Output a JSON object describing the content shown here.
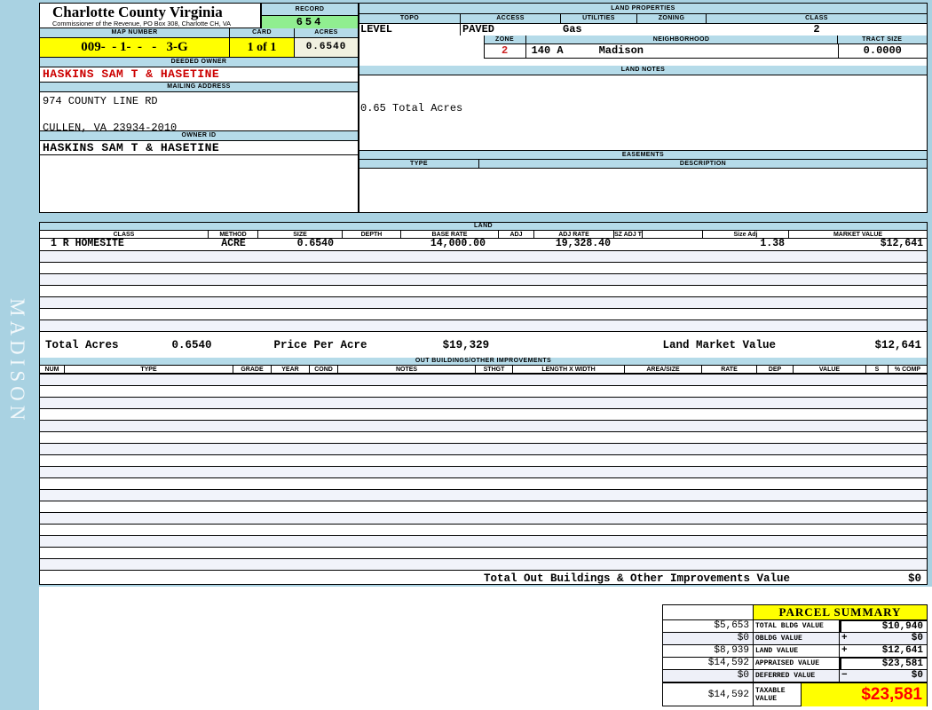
{
  "watermark": "MADISON",
  "header": {
    "county_title": "Charlotte County Virginia",
    "county_subtitle": "Commissioner of the Revenue, PO Box 308, Charlotte CH, VA",
    "record_label": "RECORD",
    "record_value": "654",
    "map_number_label": "MAP NUMBER",
    "map_number_value": "009-  - 1-  -   -   3-G",
    "card_label": "CARD",
    "card_value": "1 of 1",
    "acres_label": "ACRES",
    "acres_value": "0.6540"
  },
  "owner": {
    "deeded_owner_label": "DEEDED OWNER",
    "deeded_owner": "HASKINS SAM T & HASETINE",
    "mailing_address_label": "MAILING ADDRESS",
    "address_line1": "974 COUNTY LINE RD",
    "address_line2": "CULLEN, VA 23934-2010",
    "owner_id_label": "OWNER ID",
    "owner_id": "HASKINS SAM T & HASETINE"
  },
  "land_properties": {
    "title": "LAND PROPERTIES",
    "topo_label": "TOPO",
    "topo_value": "LEVEL",
    "access_label": "ACCESS",
    "access_value": "PAVED",
    "utilities_label": "UTILITIES",
    "utilities_value": "Gas",
    "zoning_label": "ZONING",
    "zoning_value": "",
    "class_label": "CLASS",
    "class_value": "2",
    "zone_label": "ZONE",
    "zone_value": "2",
    "neighborhood_label": "NEIGHBORHOOD",
    "neighborhood_code": "140 A",
    "neighborhood_name": "Madison",
    "tract_size_label": "TRACT SIZE",
    "tract_size_value": "0.0000"
  },
  "land_notes": {
    "title": "LAND NOTES",
    "note": "0.65 Total Acres"
  },
  "easements": {
    "title": "EASEMENTS",
    "type_label": "TYPE",
    "description_label": "DESCRIPTION"
  },
  "land_table": {
    "title": "LAND",
    "columns": [
      "CLASS",
      "METHOD",
      "SIZE",
      "DEPTH",
      "BASE RATE",
      "ADJ",
      "ADJ RATE",
      "SZ ADJ TBL",
      "",
      "Size Adj",
      "MARKET VALUE"
    ],
    "rows": [
      [
        "1 R HOMESITE",
        "ACRE",
        "0.6540",
        "",
        "14,000.00",
        "",
        "19,328.40",
        "",
        "",
        "1.38",
        "$12,641"
      ]
    ],
    "empty_row_count": 7,
    "totals": {
      "total_acres_label": "Total Acres",
      "total_acres": "0.6540",
      "price_per_acre_label": "Price Per Acre",
      "price_per_acre": "$19,329",
      "land_market_value_label": "Land Market Value",
      "land_market_value": "$12,641"
    }
  },
  "out_buildings": {
    "title": "OUT BUILDINGS/OTHER IMPROVEMENTS",
    "columns": [
      "NUM",
      "TYPE",
      "GRADE",
      "YEAR",
      "COND",
      "NOTES",
      "STHGT",
      "LENGTH X WIDTH",
      "AREA/SIZE",
      "RATE",
      "DEP",
      "VALUE",
      "S",
      "% COMP"
    ],
    "empty_row_count": 17,
    "total_label": "Total Out Buildings & Other Improvements Value",
    "total_value": "$0"
  },
  "parcel_summary": {
    "title": "PARCEL SUMMARY",
    "rows": [
      {
        "prior": "$5,653",
        "label": "TOTAL BLDG VALUE",
        "op": "",
        "value": "$10,940"
      },
      {
        "prior": "$0",
        "label": "OBLDG VALUE",
        "op": "+",
        "value": "$0"
      },
      {
        "prior": "$8,939",
        "label": "LAND VALUE",
        "op": "+",
        "value": "$12,641"
      },
      {
        "prior": "$14,592",
        "label": "APPRAISED VALUE",
        "op": "",
        "value": "$23,581"
      },
      {
        "prior": "$0",
        "label": "DEFERRED VALUE",
        "op": "−",
        "value": "$0"
      }
    ],
    "taxable": {
      "prior": "$14,592",
      "label": "TAXABLE VALUE",
      "value": "$23,581"
    }
  },
  "colors": {
    "page_background": "#a9d2e2",
    "section_bar": "#b5dbe9",
    "record_green": "#90ee90",
    "highlight_yellow": "#ffff00",
    "acres_cream": "#f1f1e0",
    "stripe_lavender": "#f1f3fa",
    "owner_red": "#cc0000",
    "taxable_red": "#ff0000"
  }
}
